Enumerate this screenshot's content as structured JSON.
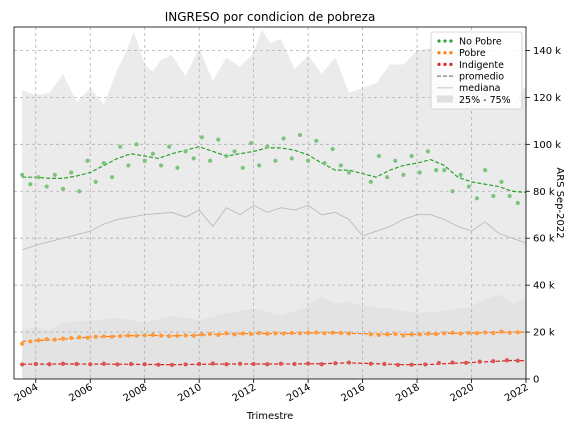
{
  "chart_data": {
    "type": "scatter",
    "title": "INGRESO por condicion de pobreza",
    "xlabel": "Trimestre",
    "ylabel": "ARS Sep-2022",
    "xlim": [
      2003.2,
      2022.0
    ],
    "ylim": [
      0,
      150000
    ],
    "y_axis_side": "right",
    "grid": true,
    "legend_position": "top-right",
    "x_ticks": [
      {
        "value": 2004,
        "label": "2004"
      },
      {
        "value": 2006,
        "label": "2006"
      },
      {
        "value": 2008,
        "label": "2008"
      },
      {
        "value": 2010,
        "label": "2010"
      },
      {
        "value": 2012,
        "label": "2012"
      },
      {
        "value": 2014,
        "label": "2014"
      },
      {
        "value": 2016,
        "label": "2016"
      },
      {
        "value": 2018,
        "label": "2018"
      },
      {
        "value": 2020,
        "label": "2020"
      },
      {
        "value": 2022,
        "label": "2022"
      }
    ],
    "y_ticks": [
      {
        "value": 0,
        "label": "0"
      },
      {
        "value": 20000,
        "label": "20 k"
      },
      {
        "value": 40000,
        "label": "40 k"
      },
      {
        "value": 60000,
        "label": "60 k"
      },
      {
        "value": 80000,
        "label": "80 k"
      },
      {
        "value": 100000,
        "label": "100 k"
      },
      {
        "value": 120000,
        "label": "120 k"
      },
      {
        "value": 140000,
        "label": "140 k"
      }
    ],
    "legend": [
      {
        "label": "No Pobre",
        "kind": "dots",
        "color": "#2ca02c"
      },
      {
        "label": "Pobre",
        "kind": "dots",
        "color": "#ff7f0e"
      },
      {
        "label": "Indigente",
        "kind": "dots",
        "color": "#d62728"
      },
      {
        "label": "promedio",
        "kind": "dash",
        "color": "#808080"
      },
      {
        "label": "mediana",
        "kind": "line",
        "color": "#cccccc"
      },
      {
        "label": "25% - 75%",
        "kind": "band",
        "color": "#e0e0e0"
      }
    ],
    "series": [
      {
        "key": "no_pobre",
        "color": "#2ca02c",
        "dot_color": "#7cc47c",
        "x": [
          2003.5,
          2003.8,
          2004.1,
          2004.4,
          2004.7,
          2005.0,
          2005.3,
          2005.6,
          2005.9,
          2006.2,
          2006.5,
          2006.8,
          2007.1,
          2007.4,
          2007.7,
          2008.0,
          2008.3,
          2008.6,
          2008.9,
          2009.2,
          2009.5,
          2009.8,
          2010.1,
          2010.4,
          2010.7,
          2011.0,
          2011.3,
          2011.6,
          2011.9,
          2012.2,
          2012.5,
          2012.8,
          2013.1,
          2013.4,
          2013.7,
          2014.0,
          2014.3,
          2014.6,
          2014.9,
          2015.2,
          2015.5,
          2016.3,
          2016.6,
          2016.9,
          2017.2,
          2017.5,
          2017.8,
          2018.1,
          2018.4,
          2018.7,
          2019.0,
          2019.3,
          2019.6,
          2019.9,
          2020.2,
          2020.5,
          2020.8,
          2021.1,
          2021.4,
          2021.7
        ],
        "values": [
          87000,
          83000,
          86000,
          82000,
          87000,
          81000,
          88000,
          80000,
          93000,
          84000,
          92000,
          86000,
          99000,
          91000,
          100000,
          93000,
          96000,
          91000,
          99000,
          90000,
          97000,
          94000,
          103000,
          93000,
          102000,
          95000,
          97000,
          90000,
          100500,
          91000,
          99000,
          93000,
          102500,
          94000,
          104000,
          93000,
          101500,
          92000,
          98000,
          91000,
          88000,
          84000,
          95000,
          86000,
          93000,
          87000,
          95000,
          88000,
          97000,
          89000,
          89000,
          80000,
          87000,
          82000,
          77000,
          89000,
          78000,
          84000,
          78000,
          75000
        ],
        "trend_x": [
          2003.5,
          2004.0,
          2004.5,
          2005.0,
          2005.5,
          2006.0,
          2006.5,
          2007.0,
          2007.5,
          2008.0,
          2008.5,
          2009.0,
          2009.5,
          2010.0,
          2010.5,
          2011.0,
          2011.5,
          2012.0,
          2012.5,
          2013.0,
          2013.5,
          2014.0,
          2014.5,
          2015.0,
          2015.5,
          2016.0,
          2016.5,
          2017.0,
          2017.5,
          2018.0,
          2018.5,
          2019.0,
          2019.5,
          2020.0,
          2020.5,
          2021.0,
          2021.5,
          2022.0
        ],
        "trend": [
          86000,
          86000,
          85500,
          85500,
          86500,
          88000,
          91000,
          94000,
          96000,
          95000,
          94000,
          96000,
          97500,
          99000,
          97000,
          95000,
          96000,
          97000,
          98500,
          98500,
          97500,
          95500,
          92000,
          89000,
          89000,
          87500,
          86000,
          89000,
          91000,
          92000,
          93500,
          91000,
          86000,
          84000,
          83000,
          82000,
          80000,
          79500
        ]
      },
      {
        "key": "pobre",
        "color": "#ff7f0e",
        "dot_color": "#ff9a3c",
        "x": [
          2003.5,
          2003.8,
          2004.1,
          2004.4,
          2004.7,
          2005.0,
          2005.3,
          2005.6,
          2005.9,
          2006.2,
          2006.5,
          2006.8,
          2007.1,
          2007.4,
          2007.7,
          2008.0,
          2008.3,
          2008.6,
          2008.9,
          2009.2,
          2009.5,
          2009.8,
          2010.1,
          2010.4,
          2010.7,
          2011.0,
          2011.3,
          2011.6,
          2011.9,
          2012.2,
          2012.5,
          2012.8,
          2013.1,
          2013.4,
          2013.7,
          2014.0,
          2014.3,
          2014.6,
          2014.9,
          2015.2,
          2015.5,
          2016.3,
          2016.6,
          2016.9,
          2017.2,
          2017.5,
          2017.8,
          2018.1,
          2018.4,
          2018.7,
          2019.0,
          2019.3,
          2019.6,
          2019.9,
          2020.2,
          2020.5,
          2020.8,
          2021.1,
          2021.4,
          2021.7
        ],
        "values": [
          15000,
          16000,
          16500,
          17000,
          16800,
          17200,
          17500,
          17800,
          17600,
          18000,
          18200,
          18000,
          18300,
          18500,
          18400,
          18600,
          18800,
          18500,
          18300,
          18400,
          18600,
          18500,
          19000,
          19200,
          18800,
          19500,
          19000,
          19400,
          19200,
          19600,
          19300,
          19500,
          19400,
          19600,
          19500,
          19700,
          19800,
          19500,
          19700,
          19600,
          19400,
          19000,
          18800,
          19000,
          19200,
          18600,
          18900,
          19000,
          19300,
          19100,
          19500,
          19700,
          19400,
          19600,
          19500,
          19800,
          19600,
          20200,
          19700,
          19900
        ],
        "trend_x": [
          2003.5,
          2004.0,
          2005.0,
          2006.0,
          2007.0,
          2008.0,
          2009.0,
          2010.0,
          2011.0,
          2012.0,
          2013.0,
          2014.0,
          2015.0,
          2016.0,
          2017.0,
          2018.0,
          2019.0,
          2020.0,
          2021.0,
          2022.0
        ],
        "trend": [
          16000,
          16300,
          17000,
          17800,
          18300,
          18600,
          18400,
          18700,
          19200,
          19400,
          19400,
          19600,
          19700,
          19300,
          19000,
          19000,
          19400,
          19600,
          19900,
          20000
        ]
      },
      {
        "key": "indigente",
        "color": "#d62728",
        "dot_color": "#d9534f",
        "x": [
          2003.5,
          2004.0,
          2004.5,
          2005.0,
          2005.5,
          2006.0,
          2006.5,
          2007.0,
          2007.5,
          2008.0,
          2008.5,
          2009.0,
          2009.5,
          2010.0,
          2010.5,
          2011.0,
          2011.5,
          2012.0,
          2012.5,
          2013.0,
          2013.5,
          2014.0,
          2014.5,
          2015.0,
          2015.5,
          2016.3,
          2016.8,
          2017.3,
          2017.8,
          2018.3,
          2018.8,
          2019.3,
          2019.8,
          2020.3,
          2020.8,
          2021.3,
          2021.7
        ],
        "values": [
          6200,
          6400,
          6300,
          6500,
          6400,
          6300,
          6500,
          6200,
          6400,
          6300,
          6100,
          6000,
          6200,
          6400,
          6600,
          6300,
          6500,
          6400,
          6300,
          6500,
          6400,
          6600,
          6300,
          6700,
          7000,
          6500,
          6400,
          6000,
          6100,
          6200,
          6800,
          7000,
          6900,
          7400,
          7600,
          8000,
          7800
        ],
        "trend_x": [
          2003.5,
          2005.0,
          2007.0,
          2009.0,
          2011.0,
          2013.0,
          2014.5,
          2015.5,
          2016.5,
          2017.5,
          2018.5,
          2019.5,
          2020.5,
          2021.5,
          2022.0
        ],
        "trend": [
          6300,
          6400,
          6300,
          6100,
          6400,
          6400,
          6500,
          6900,
          6500,
          6100,
          6200,
          6800,
          7300,
          7900,
          7800
        ]
      }
    ],
    "median_line": {
      "color": "#bbbbbb",
      "x": [
        2003.5,
        2004.0,
        2005.0,
        2006.0,
        2006.5,
        2007.0,
        2008.0,
        2009.0,
        2009.5,
        2010.0,
        2010.5,
        2011.0,
        2011.5,
        2012.0,
        2012.5,
        2013.0,
        2013.5,
        2014.0,
        2014.5,
        2015.0,
        2015.5,
        2016.0,
        2016.5,
        2017.0,
        2017.5,
        2018.0,
        2018.5,
        2019.0,
        2019.5,
        2020.0,
        2020.5,
        2021.0,
        2021.5,
        2022.0
      ],
      "values": [
        55000,
        57000,
        60000,
        63000,
        66000,
        68000,
        70000,
        71000,
        69000,
        72000,
        65000,
        73000,
        70000,
        74000,
        71000,
        73000,
        72000,
        74000,
        70000,
        71000,
        68000,
        61000,
        63000,
        65000,
        68000,
        70000,
        70000,
        68000,
        65000,
        63000,
        67000,
        62000,
        60000,
        58000
      ]
    },
    "band_upper": {
      "color": "#ebebeb",
      "x": [
        2003.5,
        2004.0,
        2004.5,
        2005.0,
        2005.5,
        2006.0,
        2006.5,
        2007.0,
        2007.3,
        2007.6,
        2008.0,
        2008.3,
        2008.6,
        2009.0,
        2009.5,
        2010.0,
        2010.5,
        2011.0,
        2011.5,
        2012.0,
        2012.3,
        2012.6,
        2013.0,
        2013.5,
        2014.0,
        2014.5,
        2015.0,
        2015.5,
        2016.0,
        2016.5,
        2017.0,
        2017.5,
        2018.0,
        2018.5,
        2019.0,
        2019.5,
        2020.0,
        2020.5,
        2021.0,
        2021.5,
        2022.0
      ],
      "values": [
        123000,
        121000,
        122000,
        130000,
        118000,
        124000,
        117000,
        132000,
        139000,
        148000,
        134000,
        131000,
        136000,
        138000,
        129000,
        141000,
        127000,
        137000,
        133000,
        139000,
        149000,
        143000,
        145000,
        132000,
        138000,
        130000,
        137000,
        122000,
        124000,
        126000,
        134000,
        134000,
        140000,
        141000,
        143000,
        139000,
        147000,
        128000,
        123000,
        117000,
        125000
      ]
    },
    "band_lower": {
      "color": "#e3e3e3",
      "x": [
        2003.5,
        2004.0,
        2004.5,
        2005.0,
        2006.0,
        2007.0,
        2008.0,
        2009.0,
        2010.0,
        2011.0,
        2012.0,
        2013.0,
        2014.0,
        2014.5,
        2015.0,
        2015.5,
        2016.0,
        2017.0,
        2018.0,
        2019.0,
        2020.0,
        2020.5,
        2021.0,
        2021.5,
        2022.0
      ],
      "values": [
        21000,
        22000,
        21000,
        24000,
        25000,
        26000,
        24000,
        27000,
        25000,
        28000,
        30000,
        27000,
        31000,
        35000,
        32000,
        33000,
        31000,
        30000,
        28000,
        29000,
        31000,
        34000,
        36000,
        32000,
        34000
      ]
    }
  }
}
